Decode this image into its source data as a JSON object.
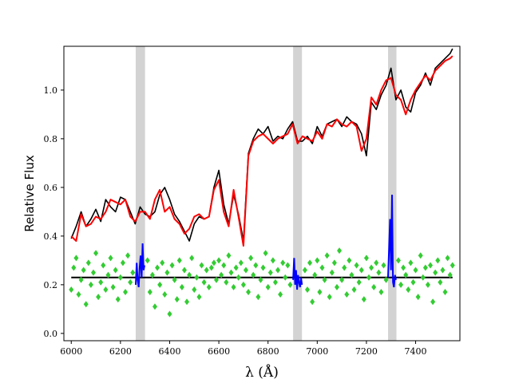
{
  "chart_data": {
    "type": "line",
    "title": "",
    "xlabel": "λ (Å)",
    "ylabel": "Relative Flux",
    "xlim": [
      5970,
      7580
    ],
    "ylim": [
      -0.03,
      1.18
    ],
    "xticks": [
      6000,
      6200,
      6400,
      6600,
      6800,
      7000,
      7200,
      7400
    ],
    "yticks": [
      0.0,
      0.2,
      0.4,
      0.6,
      0.8,
      1.0
    ],
    "ytick_labels": [
      "0.0",
      "0.2",
      "0.4",
      "0.6",
      "0.8",
      "1.0"
    ],
    "grid": false,
    "legend": "none",
    "masked_regions": [
      [
        6262,
        6300
      ],
      [
        6902,
        6938
      ],
      [
        7288,
        7322
      ]
    ],
    "continuum_level": 0.23,
    "colors": {
      "observed": "#000000",
      "model": "#ff0000",
      "residuals": "#33cc33",
      "masked_residuals": "#0000ff",
      "mask_band": "#d3d3d3",
      "zero_line": "#000000"
    },
    "series": [
      {
        "kind": "observed",
        "x": [
          6000,
          6020,
          6040,
          6060,
          6080,
          6100,
          6120,
          6140,
          6160,
          6180,
          6200,
          6220,
          6240,
          6260,
          6280,
          6300,
          6320,
          6340,
          6360,
          6380,
          6400,
          6420,
          6440,
          6460,
          6480,
          6500,
          6520,
          6540,
          6560,
          6580,
          6600,
          6620,
          6640,
          6660,
          6680,
          6700,
          6720,
          6740,
          6760,
          6780,
          6800,
          6820,
          6840,
          6860,
          6880,
          6900,
          6920,
          6940,
          6960,
          6980,
          7000,
          7020,
          7040,
          7060,
          7080,
          7100,
          7120,
          7140,
          7160,
          7180,
          7200,
          7220,
          7240,
          7260,
          7280,
          7300,
          7320,
          7340,
          7360,
          7380,
          7400,
          7420,
          7440,
          7460,
          7480,
          7500,
          7520,
          7540,
          7550
        ],
        "y": [
          0.39,
          0.44,
          0.5,
          0.44,
          0.47,
          0.51,
          0.46,
          0.55,
          0.52,
          0.5,
          0.56,
          0.55,
          0.5,
          0.45,
          0.52,
          0.49,
          0.48,
          0.5,
          0.57,
          0.6,
          0.55,
          0.49,
          0.46,
          0.42,
          0.38,
          0.45,
          0.48,
          0.47,
          0.48,
          0.6,
          0.67,
          0.53,
          0.45,
          0.57,
          0.49,
          0.38,
          0.74,
          0.8,
          0.84,
          0.82,
          0.85,
          0.79,
          0.81,
          0.8,
          0.84,
          0.87,
          0.79,
          0.79,
          0.81,
          0.78,
          0.85,
          0.81,
          0.86,
          0.87,
          0.88,
          0.85,
          0.89,
          0.87,
          0.86,
          0.82,
          0.73,
          0.95,
          0.92,
          0.98,
          1.02,
          1.09,
          0.96,
          1.0,
          0.93,
          0.91,
          0.99,
          1.02,
          1.07,
          1.02,
          1.09,
          1.11,
          1.13,
          1.15,
          1.17
        ]
      },
      {
        "kind": "model",
        "x": [
          6000,
          6020,
          6040,
          6060,
          6080,
          6100,
          6120,
          6140,
          6160,
          6180,
          6200,
          6220,
          6240,
          6260,
          6280,
          6300,
          6320,
          6340,
          6360,
          6380,
          6400,
          6420,
          6440,
          6460,
          6480,
          6500,
          6520,
          6540,
          6560,
          6580,
          6600,
          6620,
          6640,
          6660,
          6680,
          6700,
          6720,
          6740,
          6760,
          6780,
          6800,
          6820,
          6840,
          6860,
          6880,
          6900,
          6920,
          6940,
          6960,
          6980,
          7000,
          7020,
          7040,
          7060,
          7080,
          7100,
          7120,
          7140,
          7160,
          7180,
          7200,
          7220,
          7240,
          7260,
          7280,
          7300,
          7320,
          7340,
          7360,
          7380,
          7400,
          7420,
          7440,
          7460,
          7480,
          7500,
          7520,
          7540,
          7550
        ],
        "y": [
          0.4,
          0.38,
          0.49,
          0.44,
          0.45,
          0.48,
          0.47,
          0.5,
          0.55,
          0.54,
          0.53,
          0.55,
          0.48,
          0.46,
          0.5,
          0.5,
          0.47,
          0.55,
          0.59,
          0.5,
          0.52,
          0.47,
          0.45,
          0.41,
          0.43,
          0.48,
          0.49,
          0.47,
          0.48,
          0.59,
          0.63,
          0.5,
          0.44,
          0.59,
          0.48,
          0.36,
          0.73,
          0.79,
          0.81,
          0.82,
          0.8,
          0.78,
          0.8,
          0.81,
          0.82,
          0.86,
          0.78,
          0.81,
          0.8,
          0.79,
          0.83,
          0.8,
          0.86,
          0.85,
          0.88,
          0.86,
          0.85,
          0.87,
          0.85,
          0.75,
          0.8,
          0.97,
          0.94,
          1.0,
          1.04,
          1.05,
          0.98,
          0.96,
          0.9,
          0.96,
          1.0,
          1.03,
          1.06,
          1.04,
          1.08,
          1.1,
          1.12,
          1.13,
          1.14
        ]
      },
      {
        "kind": "residuals",
        "x": [
          6000,
          6010,
          6020,
          6030,
          6040,
          6050,
          6060,
          6070,
          6080,
          6090,
          6100,
          6110,
          6120,
          6130,
          6140,
          6150,
          6160,
          6170,
          6180,
          6190,
          6200,
          6210,
          6220,
          6230,
          6240,
          6250,
          6310,
          6320,
          6330,
          6340,
          6350,
          6360,
          6370,
          6380,
          6390,
          6400,
          6410,
          6420,
          6430,
          6440,
          6450,
          6460,
          6470,
          6480,
          6490,
          6500,
          6510,
          6520,
          6530,
          6540,
          6550,
          6560,
          6570,
          6580,
          6590,
          6600,
          6610,
          6620,
          6630,
          6640,
          6650,
          6660,
          6670,
          6680,
          6690,
          6700,
          6710,
          6720,
          6730,
          6740,
          6750,
          6760,
          6770,
          6780,
          6790,
          6800,
          6810,
          6820,
          6830,
          6840,
          6850,
          6860,
          6870,
          6880,
          6890,
          6950,
          6960,
          6970,
          6980,
          6990,
          7000,
          7010,
          7020,
          7030,
          7040,
          7050,
          7060,
          7070,
          7080,
          7090,
          7100,
          7110,
          7120,
          7130,
          7140,
          7150,
          7160,
          7170,
          7180,
          7190,
          7200,
          7210,
          7220,
          7230,
          7240,
          7250,
          7260,
          7270,
          7280,
          7330,
          7340,
          7350,
          7360,
          7370,
          7380,
          7390,
          7400,
          7410,
          7420,
          7430,
          7440,
          7450,
          7460,
          7470,
          7480,
          7490,
          7500,
          7510,
          7520,
          7530,
          7540,
          7550
        ],
        "y": [
          0.18,
          0.27,
          0.31,
          0.16,
          0.22,
          0.26,
          0.12,
          0.29,
          0.2,
          0.25,
          0.33,
          0.15,
          0.21,
          0.28,
          0.18,
          0.24,
          0.31,
          0.19,
          0.26,
          0.14,
          0.23,
          0.29,
          0.17,
          0.32,
          0.21,
          0.25,
          0.3,
          0.17,
          0.24,
          0.11,
          0.27,
          0.2,
          0.29,
          0.16,
          0.25,
          0.08,
          0.28,
          0.22,
          0.14,
          0.3,
          0.19,
          0.26,
          0.13,
          0.24,
          0.31,
          0.18,
          0.23,
          0.15,
          0.28,
          0.21,
          0.26,
          0.19,
          0.27,
          0.29,
          0.22,
          0.3,
          0.24,
          0.28,
          0.21,
          0.32,
          0.25,
          0.19,
          0.27,
          0.23,
          0.29,
          0.2,
          0.26,
          0.17,
          0.31,
          0.24,
          0.28,
          0.15,
          0.22,
          0.27,
          0.33,
          0.19,
          0.25,
          0.3,
          0.21,
          0.26,
          0.16,
          0.29,
          0.23,
          0.28,
          0.2,
          0.26,
          0.18,
          0.29,
          0.13,
          0.24,
          0.3,
          0.17,
          0.27,
          0.22,
          0.32,
          0.15,
          0.25,
          0.29,
          0.19,
          0.34,
          0.22,
          0.27,
          0.16,
          0.3,
          0.24,
          0.18,
          0.28,
          0.21,
          0.26,
          0.14,
          0.31,
          0.23,
          0.27,
          0.19,
          0.29,
          0.25,
          0.17,
          0.28,
          0.22,
          0.3,
          0.2,
          0.27,
          0.24,
          0.18,
          0.29,
          0.21,
          0.26,
          0.15,
          0.32,
          0.23,
          0.27,
          0.2,
          0.28,
          0.13,
          0.25,
          0.3,
          0.21,
          0.26,
          0.17,
          0.31,
          0.24,
          0.28
        ]
      },
      {
        "kind": "masked_residuals",
        "segments": [
          {
            "x": [
              6262,
              6266,
              6270,
              6274,
              6278,
              6282,
              6286,
              6290,
              6294,
              6298
            ],
            "y": [
              0.2,
              0.29,
              0.22,
              0.19,
              0.27,
              0.32,
              0.23,
              0.37,
              0.26,
              0.28
            ]
          },
          {
            "x": [
              6902,
              6906,
              6910,
              6914,
              6918,
              6922,
              6926,
              6930,
              6934,
              6938
            ],
            "y": [
              0.22,
              0.31,
              0.2,
              0.26,
              0.18,
              0.24,
              0.21,
              0.19,
              0.23,
              0.2
            ]
          },
          {
            "x": [
              7288,
              7292,
              7296,
              7300,
              7304,
              7308,
              7312,
              7316,
              7320
            ],
            "y": [
              0.23,
              0.35,
              0.47,
              0.26,
              0.57,
              0.21,
              0.19,
              0.24,
              0.22
            ]
          }
        ]
      }
    ]
  }
}
